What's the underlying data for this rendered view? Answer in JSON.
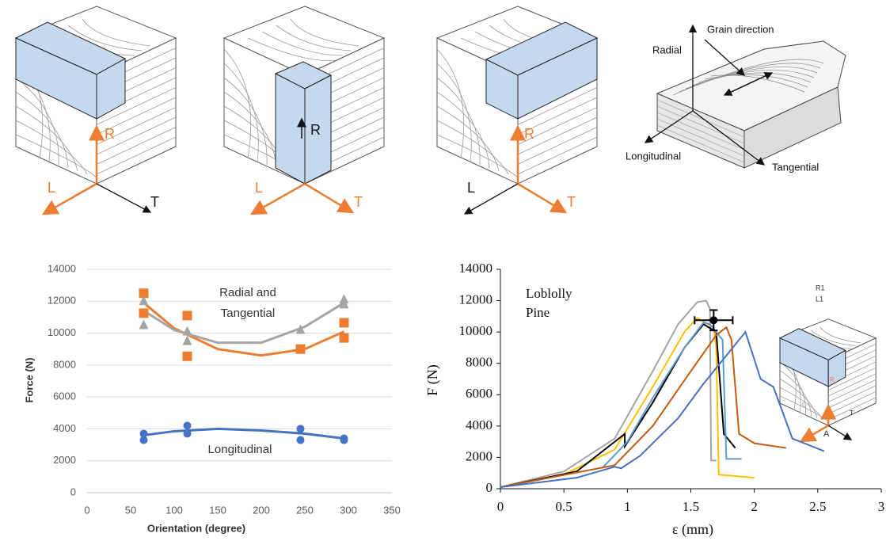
{
  "diagrams": [
    {
      "labels": [
        "R",
        "L",
        "T"
      ]
    },
    {
      "labels": [
        "R",
        "L",
        "T"
      ]
    },
    {
      "labels": [
        "R",
        "L",
        "T"
      ]
    },
    {
      "labels": [
        "Radial",
        "Grain direction",
        "Longitudinal",
        "Tangential"
      ]
    }
  ],
  "chart_data": [
    {
      "type": "scatter",
      "xlabel": "Orientation (degree)",
      "ylabel": "Force (N)",
      "annotations": [
        "Radial and",
        "Tangential",
        "Longitudinal"
      ],
      "xlim": [
        0,
        350
      ],
      "xticks": [
        0,
        50,
        100,
        150,
        200,
        250,
        300,
        350
      ],
      "ylim": [
        0,
        14000
      ],
      "yticks": [
        0,
        2000,
        4000,
        6000,
        8000,
        10000,
        12000,
        14000
      ],
      "grid": true,
      "series": [
        {
          "color": "#ed7d31",
          "marker": "square",
          "x": [
            65,
            65,
            115,
            115,
            245,
            295,
            295
          ],
          "values": [
            12500,
            11250,
            11100,
            8550,
            9000,
            10650,
            9700
          ]
        },
        {
          "color": "#a5a5a5",
          "marker": "triangle",
          "x": [
            65,
            65,
            115,
            115,
            245,
            295,
            295
          ],
          "values": [
            12000,
            10500,
            10100,
            9500,
            10200,
            12100,
            11800
          ]
        },
        {
          "color": "#4472c4",
          "marker": "circle",
          "x": [
            65,
            65,
            115,
            115,
            245,
            245,
            295,
            295
          ],
          "values": [
            3700,
            3300,
            4200,
            3700,
            4000,
            3300,
            3400,
            3300
          ]
        }
      ],
      "trendlines": [
        {
          "color": "#ed7d31",
          "x": [
            65,
            100,
            150,
            200,
            250,
            295
          ],
          "values": [
            11900,
            10300,
            9000,
            8600,
            9000,
            10100
          ]
        },
        {
          "color": "#a5a5a5",
          "x": [
            65,
            100,
            150,
            200,
            250,
            295
          ],
          "values": [
            11400,
            10200,
            9400,
            9400,
            10400,
            11900
          ]
        },
        {
          "color": "#4472c4",
          "x": [
            65,
            100,
            150,
            200,
            250,
            295
          ],
          "values": [
            3600,
            3850,
            4000,
            3900,
            3700,
            3400
          ]
        }
      ]
    },
    {
      "type": "line",
      "xlabel": "ε (mm)",
      "ylabel": "F (N)",
      "annotations": [
        "Loblolly",
        "Pine"
      ],
      "xlim": [
        0,
        3
      ],
      "xticks": [
        0,
        0.5,
        1,
        1.5,
        2,
        2.5,
        3
      ],
      "ylim": [
        0,
        14000
      ],
      "yticks": [
        0,
        2000,
        4000,
        6000,
        8000,
        10000,
        12000,
        14000
      ],
      "grid": false,
      "series": [
        {
          "color": "#a5a5a5",
          "x": [
            0,
            0.5,
            0.9,
            1.2,
            1.4,
            1.55,
            1.62,
            1.65,
            1.66,
            1.7
          ],
          "values": [
            100,
            1100,
            3200,
            7500,
            10500,
            11900,
            12000,
            11500,
            1800,
            1800
          ]
        },
        {
          "color": "#ffc000",
          "x": [
            0,
            0.5,
            0.9,
            1.2,
            1.45,
            1.55,
            1.68,
            1.7,
            1.72,
            2.0
          ],
          "values": [
            100,
            900,
            2500,
            6500,
            10000,
            10900,
            10300,
            9000,
            900,
            700
          ]
        },
        {
          "color": "#000000",
          "x": [
            0,
            0.6,
            0.98,
            0.98,
            1.2,
            1.45,
            1.6,
            1.7,
            1.76,
            1.85
          ],
          "values": [
            100,
            1100,
            3500,
            2700,
            5500,
            9000,
            10500,
            10000,
            3500,
            2600
          ]
        },
        {
          "color": "#5b9bd5",
          "x": [
            0.8,
            1.0,
            1.2,
            1.45,
            1.6,
            1.65,
            1.75,
            1.78,
            1.9
          ],
          "values": [
            1300,
            3000,
            5800,
            9000,
            10600,
            10500,
            9500,
            1900,
            1900
          ]
        },
        {
          "color": "#c55a11",
          "x": [
            0,
            0.9,
            1.2,
            1.5,
            1.7,
            1.78,
            1.82,
            1.88,
            2.0,
            2.25
          ],
          "values": [
            100,
            1500,
            4000,
            7500,
            9800,
            10300,
            9500,
            3500,
            2900,
            2600
          ]
        },
        {
          "color": "#4472c4",
          "x": [
            0,
            0.6,
            0.9,
            0.95,
            1.1,
            1.4,
            1.6,
            1.93,
            1.95,
            2.05,
            2.15,
            2.3,
            2.55
          ],
          "values": [
            100,
            700,
            1400,
            1300,
            2100,
            4500,
            6700,
            10000,
            9500,
            7000,
            6500,
            3200,
            2400
          ]
        }
      ],
      "errorbar": {
        "color": "#000000",
        "x": 1.68,
        "y": 10750,
        "xerr": 0.15,
        "yerr": 650
      },
      "inset": {
        "labels": [
          "R1",
          "L1",
          "A",
          "R",
          "L",
          "T"
        ]
      }
    }
  ]
}
